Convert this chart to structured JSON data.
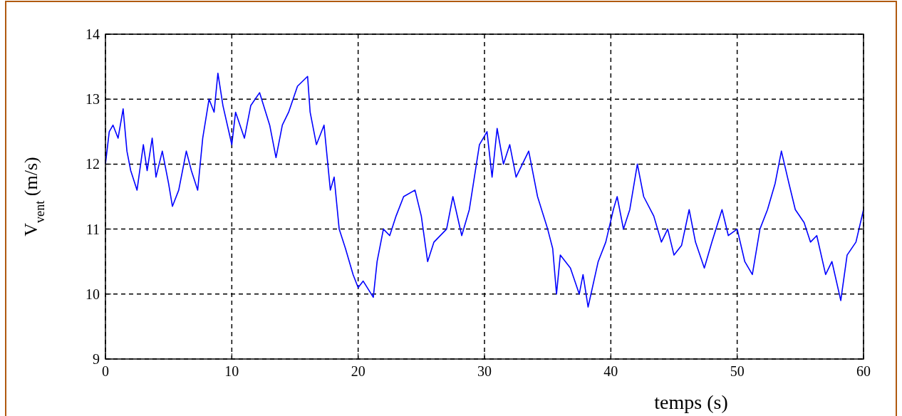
{
  "chart_data": {
    "type": "line",
    "xlabel": "temps (s)",
    "ylabel": "V$_{vent}$ (m/s)",
    "xlim": [
      0,
      60
    ],
    "ylim": [
      9,
      14
    ],
    "xticks": [
      0,
      10,
      20,
      30,
      40,
      50,
      60
    ],
    "yticks": [
      9,
      10,
      11,
      12,
      13,
      14
    ],
    "grid": true,
    "line_style": "solid",
    "marker": "none",
    "series": [
      {
        "color": "#0000ff",
        "x": [
          0,
          0.3,
          0.6,
          1,
          1.4,
          1.7,
          2,
          2.5,
          3,
          3.3,
          3.7,
          4,
          4.5,
          5,
          5.3,
          5.8,
          6.4,
          6.8,
          7.3,
          7.7,
          8.2,
          8.6,
          8.9,
          9.3,
          10,
          10.3,
          11,
          11.5,
          12.2,
          13,
          13.5,
          14,
          14.5,
          15.2,
          16,
          16.2,
          16.7,
          17.3,
          17.8,
          18.1,
          18.5,
          19,
          19.6,
          20,
          20.4,
          21.2,
          21.5,
          22,
          22.5,
          23,
          23.6,
          24.5,
          25,
          25.5,
          26,
          27,
          27.5,
          28.2,
          28.8,
          29.2,
          29.6,
          30.2,
          30.6,
          31,
          31.5,
          32,
          32.5,
          33.5,
          34.2,
          35,
          35.4,
          35.7,
          36,
          36.8,
          37.5,
          37.8,
          38.2,
          39,
          39.6,
          40.2,
          40.5,
          41,
          41.5,
          42.1,
          42.6,
          43.4,
          44,
          44.5,
          45,
          45.6,
          46.2,
          46.7,
          47.4,
          48,
          48.8,
          49.3,
          50,
          50.6,
          51.2,
          51.8,
          52.4,
          53,
          53.5,
          54.1,
          54.6,
          55.3,
          55.8,
          56.3,
          57,
          57.5,
          58.2,
          58.7,
          59.4,
          60
        ],
        "values": [
          12.0,
          12.5,
          12.6,
          12.4,
          12.85,
          12.2,
          11.9,
          11.6,
          12.3,
          11.9,
          12.4,
          11.8,
          12.2,
          11.7,
          11.35,
          11.6,
          12.2,
          11.9,
          11.6,
          12.4,
          13.0,
          12.8,
          13.4,
          12.9,
          12.3,
          12.8,
          12.4,
          12.9,
          13.1,
          12.6,
          12.1,
          12.6,
          12.8,
          13.2,
          13.35,
          12.8,
          12.3,
          12.6,
          11.6,
          11.8,
          11.0,
          10.7,
          10.3,
          10.1,
          10.2,
          9.95,
          10.5,
          11.0,
          10.9,
          11.2,
          11.5,
          11.6,
          11.2,
          10.5,
          10.8,
          11.0,
          11.5,
          10.9,
          11.3,
          11.8,
          12.3,
          12.5,
          11.8,
          12.55,
          12.0,
          12.3,
          11.8,
          12.2,
          11.5,
          11.0,
          10.7,
          10.0,
          10.6,
          10.4,
          10.0,
          10.3,
          9.8,
          10.5,
          10.8,
          11.3,
          11.5,
          11.0,
          11.3,
          12.0,
          11.5,
          11.2,
          10.8,
          11.0,
          10.6,
          10.75,
          11.3,
          10.8,
          10.4,
          10.8,
          11.3,
          10.9,
          11.0,
          10.5,
          10.3,
          11.0,
          11.3,
          11.7,
          12.2,
          11.7,
          11.3,
          11.1,
          10.8,
          10.9,
          10.3,
          10.5,
          9.9,
          10.6,
          10.8,
          11.3
        ]
      }
    ]
  }
}
